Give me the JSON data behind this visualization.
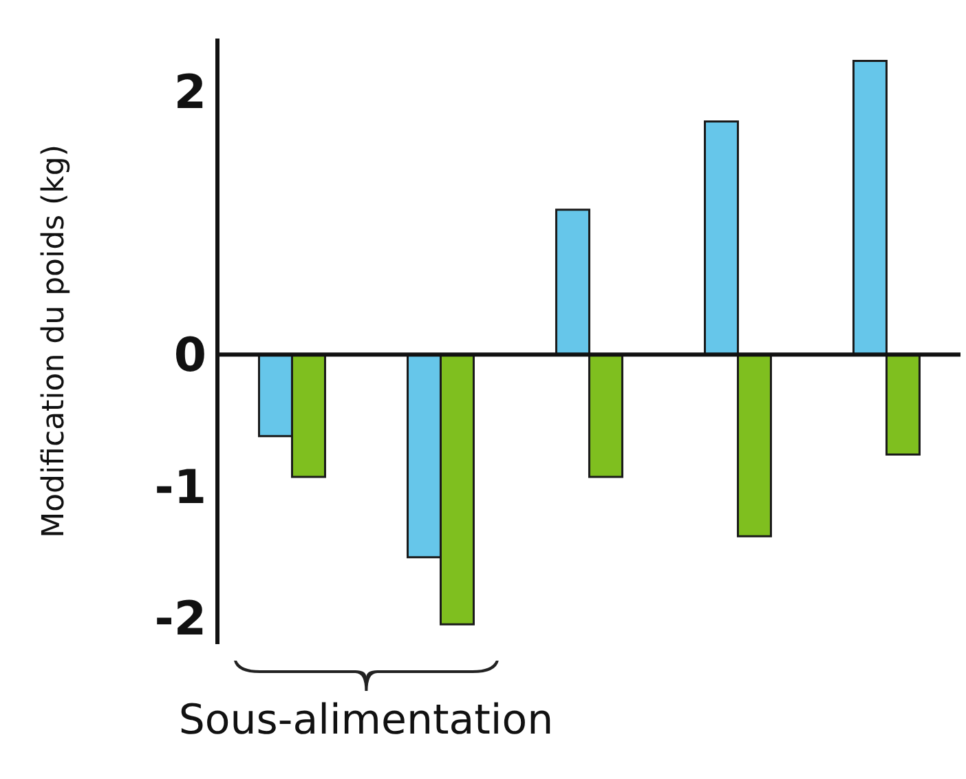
{
  "chart_data": {
    "type": "bar",
    "ylabel": "Modification du poids (kg)",
    "categories": [
      null,
      null,
      null,
      null,
      null
    ],
    "series": [
      {
        "color": "#66c6ea",
        "values": [
          -0.62,
          -1.54,
          1.1,
          1.77,
          2.23
        ]
      },
      {
        "color": "#7fbf1f",
        "values": [
          -0.93,
          -2.05,
          -0.93,
          -1.38,
          -0.76
        ]
      }
    ],
    "ylim": [
      -2.2,
      2.4
    ],
    "yticks": [
      -2,
      -1,
      0,
      2
    ],
    "legend": false,
    "ref_lines": [
      {
        "axis": "y",
        "value": 0,
        "color": "#111111"
      }
    ],
    "annotations": [
      "Sous-alimentation"
    ]
  }
}
